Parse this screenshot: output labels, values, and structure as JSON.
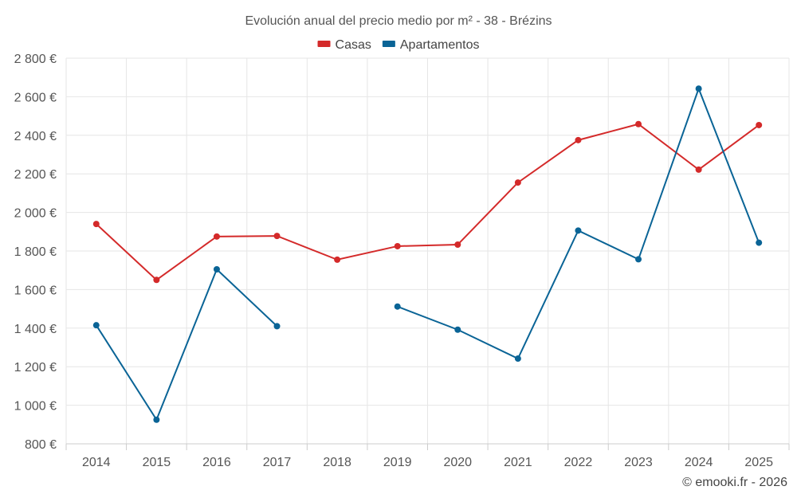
{
  "chart_data": {
    "type": "line",
    "title": "Evolución anual del precio medio por m² - 38 - Brézins",
    "categories": [
      "2014",
      "2015",
      "2016",
      "2017",
      "2018",
      "2019",
      "2020",
      "2021",
      "2022",
      "2023",
      "2024",
      "2025"
    ],
    "series": [
      {
        "name": "Casas",
        "color": "#d42a2a",
        "values": [
          1940,
          1650,
          1875,
          1878,
          1755,
          1825,
          1833,
          2155,
          2375,
          2458,
          2222,
          2453
        ]
      },
      {
        "name": "Apartamentos",
        "color": "#0a6496",
        "values": [
          1415,
          925,
          1705,
          1410,
          null,
          1512,
          1392,
          1242,
          1906,
          1757,
          2642,
          1843
        ]
      }
    ],
    "ylim": [
      800,
      2800
    ],
    "yticks": [
      800,
      1000,
      1200,
      1400,
      1600,
      1800,
      2000,
      2200,
      2400,
      2600,
      2800
    ],
    "ytick_labels": [
      "800 €",
      "1 000 €",
      "1 200 €",
      "1 400 €",
      "1 600 €",
      "1 800 €",
      "2 000 €",
      "2 200 €",
      "2 400 €",
      "2 600 €",
      "2 800 €"
    ],
    "xlabel": "",
    "ylabel": "",
    "grid": true,
    "legend_position": "top-center"
  },
  "credit": "© emooki.fr - 2026"
}
